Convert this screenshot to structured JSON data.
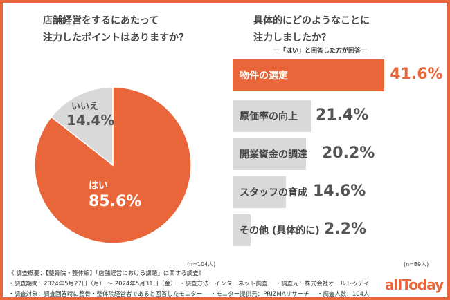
{
  "colors": {
    "accent": "#E8663A",
    "gray": "#D9D9D9",
    "text": "#444444"
  },
  "chart_data": [
    {
      "type": "pie",
      "title": "店舗経営をするにあたって\n注力したポイントはありますか？",
      "slices": [
        {
          "label": "はい",
          "value": 85.6,
          "display": "85.6%"
        },
        {
          "label": "いいえ",
          "value": 14.4,
          "display": "14.4%"
        }
      ],
      "n": "(n=104人)"
    },
    {
      "type": "bar",
      "orientation": "horizontal",
      "title": "具体的にどのようなことに\n注力しましたか？",
      "subtitle": "ー「はい」と回答した方が回答ー",
      "categories": [
        "物件の選定",
        "原価率の向上",
        "開業資金の調達",
        "スタッフの育成",
        "その他 (具体的に)"
      ],
      "values": [
        41.6,
        21.4,
        20.2,
        14.6,
        2.2
      ],
      "labels": [
        "41.6%",
        "21.4%",
        "20.2%",
        "14.6%",
        "2.2%"
      ],
      "n": "(n=89人)"
    }
  ],
  "footer": [
    "《 調査概要：【整骨院・整体編】「店舗経営における課題」に関する調査》",
    "・調査期間：2024年5月27日（月） ～ 2024年5月31日（金）　・調査方法：インターネット調査　 ・調査元：株式会社オールトゥデイ",
    "・調査対象：調査回答時に整骨・整体院経営者であると回答したモニター　 ・モニター提供元：PRIZMAリサーチ　 ・調査人数：104人"
  ],
  "logo": "allToday"
}
